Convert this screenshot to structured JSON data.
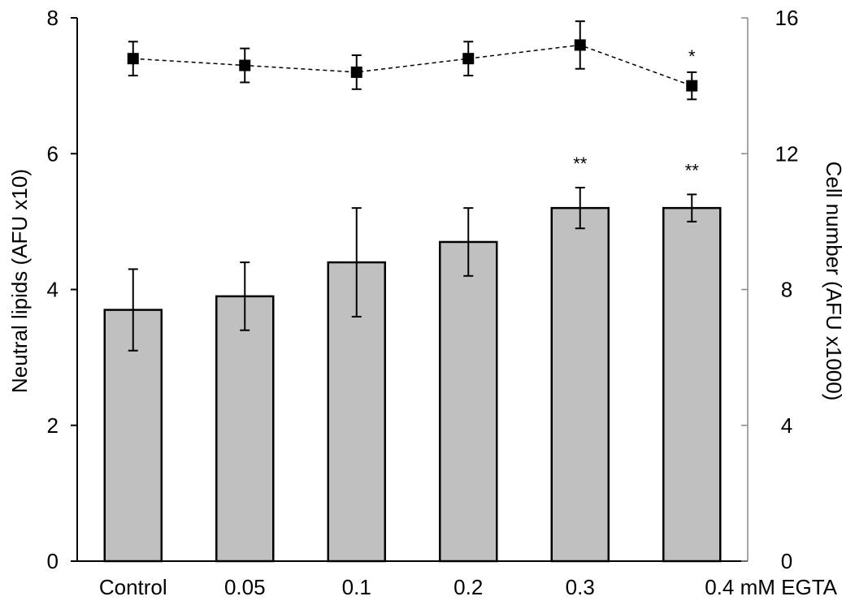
{
  "chart_data": {
    "type": "bar",
    "categories": [
      "Control",
      "0.05",
      "0.1",
      "0.2",
      "0.3",
      "0.4 mM EGTA"
    ],
    "ylabel": "Neutral lipids (AFU x10)",
    "y2label": "Cell number (AFU x1000)",
    "ylim": [
      0,
      8
    ],
    "y2lim": [
      0,
      16
    ],
    "yticks": [
      "0",
      "2",
      "4",
      "6",
      "8"
    ],
    "y2ticks": [
      "0",
      "4",
      "8",
      "12",
      "16"
    ],
    "grid": false,
    "series": [
      {
        "type": "bar",
        "axis": "left",
        "values": [
          3.7,
          3.9,
          4.4,
          4.7,
          5.2,
          5.2
        ],
        "errors": [
          0.6,
          0.5,
          0.8,
          0.5,
          0.3,
          0.2
        ],
        "annotations": [
          "",
          "",
          "",
          "",
          "**",
          "**"
        ],
        "color": "#c0c0c0"
      },
      {
        "type": "line",
        "axis": "right",
        "marker": "square",
        "linestyle": "dashed",
        "values": [
          14.8,
          14.6,
          14.4,
          14.8,
          15.2,
          14.0
        ],
        "errors": [
          0.5,
          0.5,
          0.5,
          0.5,
          0.7,
          0.4
        ],
        "annotations": [
          "",
          "",
          "",
          "",
          "",
          "*"
        ],
        "color": "#000000"
      }
    ]
  }
}
